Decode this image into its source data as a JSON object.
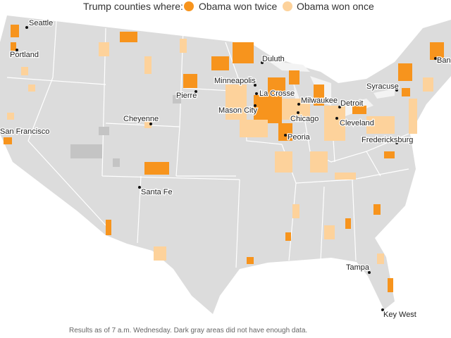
{
  "legend": {
    "title": "Trump counties where:",
    "items": [
      {
        "label": "Obama won twice",
        "color": "#f7941d"
      },
      {
        "label": "Obama won once",
        "color": "#fdd29b"
      }
    ]
  },
  "cities": [
    {
      "name": "Seattle"
    },
    {
      "name": "Portland"
    },
    {
      "name": "San Francisco"
    },
    {
      "name": "Pierre"
    },
    {
      "name": "Cheyenne"
    },
    {
      "name": "Santa Fe"
    },
    {
      "name": "Duluth"
    },
    {
      "name": "Minneapolis"
    },
    {
      "name": "La Crosse"
    },
    {
      "name": "Mason City"
    },
    {
      "name": "Milwaukee"
    },
    {
      "name": "Chicago"
    },
    {
      "name": "Peoria"
    },
    {
      "name": "Detroit"
    },
    {
      "name": "Cleveland"
    },
    {
      "name": "Syracuse"
    },
    {
      "name": "Bangor"
    },
    {
      "name": "Fredericksburg"
    },
    {
      "name": "Tampa"
    },
    {
      "name": "Key West"
    }
  ],
  "footnote": "Results as of 7 a.m. Wednesday. Dark gray areas did not have enough data."
}
